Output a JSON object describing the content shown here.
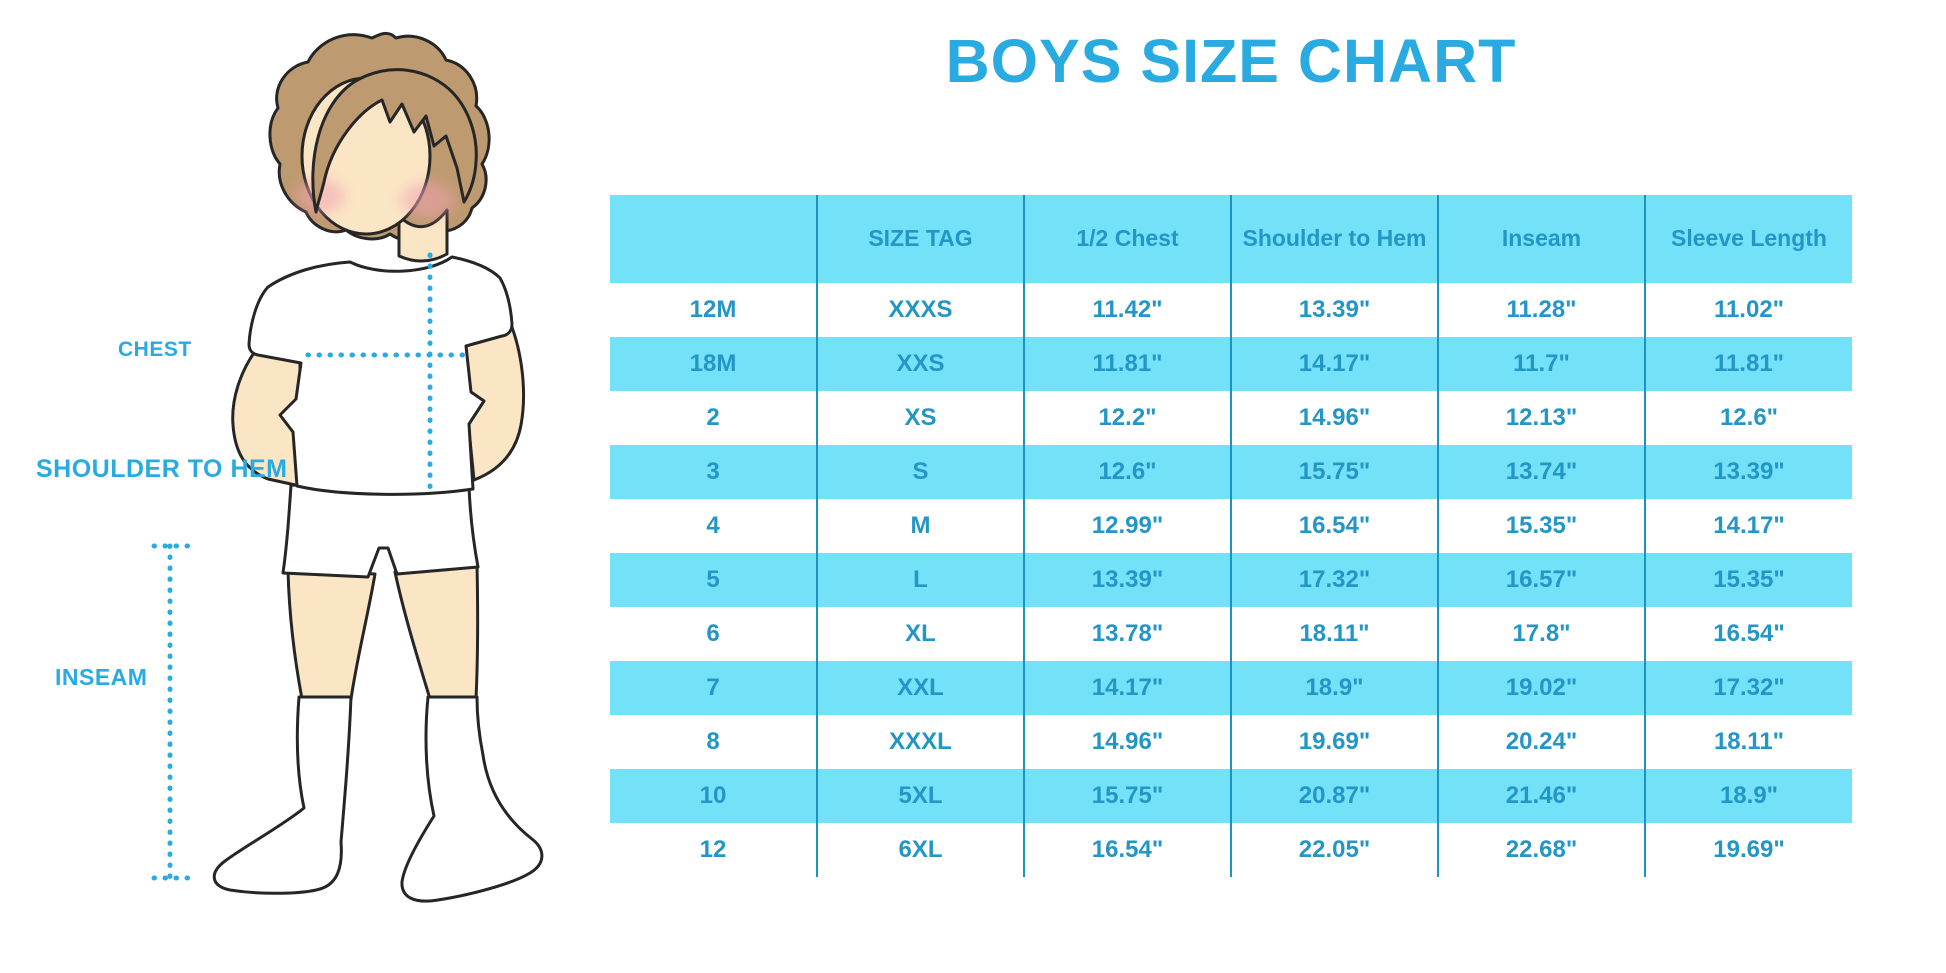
{
  "title": "BOYS SIZE CHART",
  "colors": {
    "accent_blue": "#29ABE2",
    "stripe_cyan": "#73E1F8",
    "table_text_blue": "#2496C6",
    "divider_blue": "#1D93C4",
    "skin": "#FAE5C4",
    "hair_brown": "#BE9A70",
    "blush_pink": "#F2A3B3"
  },
  "figure": {
    "description": "boy-measurement-diagram",
    "labels": {
      "chest": "CHEST",
      "shoulder_to_hem": "SHOULDER TO HEM",
      "inseam": "INSEAM"
    }
  },
  "table": {
    "columns": [
      "",
      "SIZE TAG",
      "1/2 Chest",
      "Shoulder to Hem",
      "Inseam",
      "Sleeve Length"
    ],
    "rows": [
      {
        "age": "12M",
        "size_tag": "XXXS",
        "half_chest": "11.42\"",
        "shoulder_to_hem": "13.39\"",
        "inseam": "11.28\"",
        "sleeve_length": "11.02\""
      },
      {
        "age": "18M",
        "size_tag": "XXS",
        "half_chest": "11.81\"",
        "shoulder_to_hem": "14.17\"",
        "inseam": "11.7\"",
        "sleeve_length": "11.81\""
      },
      {
        "age": "2",
        "size_tag": "XS",
        "half_chest": "12.2\"",
        "shoulder_to_hem": "14.96\"",
        "inseam": "12.13\"",
        "sleeve_length": "12.6\""
      },
      {
        "age": "3",
        "size_tag": "S",
        "half_chest": "12.6\"",
        "shoulder_to_hem": "15.75\"",
        "inseam": "13.74\"",
        "sleeve_length": "13.39\""
      },
      {
        "age": "4",
        "size_tag": "M",
        "half_chest": "12.99\"",
        "shoulder_to_hem": "16.54\"",
        "inseam": "15.35\"",
        "sleeve_length": "14.17\""
      },
      {
        "age": "5",
        "size_tag": "L",
        "half_chest": "13.39\"",
        "shoulder_to_hem": "17.32\"",
        "inseam": "16.57\"",
        "sleeve_length": "15.35\""
      },
      {
        "age": "6",
        "size_tag": "XL",
        "half_chest": "13.78\"",
        "shoulder_to_hem": "18.11\"",
        "inseam": "17.8\"",
        "sleeve_length": "16.54\""
      },
      {
        "age": "7",
        "size_tag": "XXL",
        "half_chest": "14.17\"",
        "shoulder_to_hem": "18.9\"",
        "inseam": "19.02\"",
        "sleeve_length": "17.32\""
      },
      {
        "age": "8",
        "size_tag": "XXXL",
        "half_chest": "14.96\"",
        "shoulder_to_hem": "19.69\"",
        "inseam": "20.24\"",
        "sleeve_length": "18.11\""
      },
      {
        "age": "10",
        "size_tag": "5XL",
        "half_chest": "15.75\"",
        "shoulder_to_hem": "20.87\"",
        "inseam": "21.46\"",
        "sleeve_length": "18.9\""
      },
      {
        "age": "12",
        "size_tag": "6XL",
        "half_chest": "16.54\"",
        "shoulder_to_hem": "22.05\"",
        "inseam": "22.68\"",
        "sleeve_length": "19.69\""
      }
    ]
  }
}
